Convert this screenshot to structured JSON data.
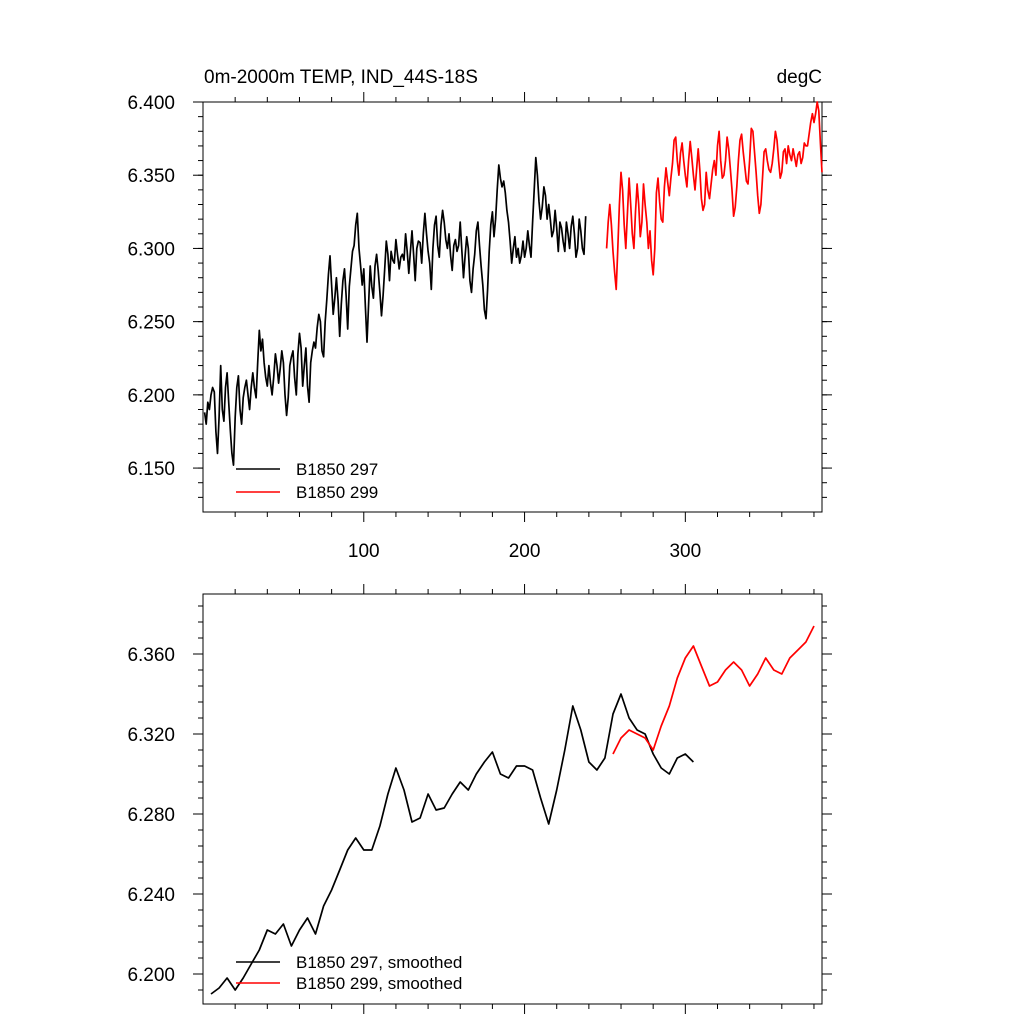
{
  "figure": {
    "background": "#ffffff"
  },
  "chart_data": [
    {
      "type": "line",
      "title_left": "0m-2000m TEMP, IND_44S-18S",
      "title_right": "degC",
      "xlim": [
        0,
        385
      ],
      "ylim": [
        6.12,
        6.4
      ],
      "yticks": [
        6.15,
        6.2,
        6.25,
        6.3,
        6.35,
        6.4
      ],
      "ytick_labels": [
        "6.150",
        "6.200",
        "6.250",
        "6.300",
        "6.350",
        "6.400"
      ],
      "xticks": [
        100,
        200,
        300
      ],
      "xtick_labels": [
        "100",
        "200",
        "300"
      ],
      "legend_position": "bottom-left",
      "series": [
        {
          "name": "B1850 297",
          "color": "#000000",
          "x_start": 1,
          "y": [
            6.188,
            6.18,
            6.195,
            6.19,
            6.2,
            6.205,
            6.202,
            6.175,
            6.16,
            6.185,
            6.22,
            6.19,
            6.182,
            6.205,
            6.215,
            6.195,
            6.176,
            6.16,
            6.152,
            6.185,
            6.205,
            6.213,
            6.19,
            6.18,
            6.198,
            6.205,
            6.21,
            6.2,
            6.19,
            6.205,
            6.215,
            6.205,
            6.198,
            6.222,
            6.244,
            6.23,
            6.238,
            6.222,
            6.212,
            6.206,
            6.22,
            6.208,
            6.2,
            6.212,
            6.228,
            6.22,
            6.208,
            6.218,
            6.23,
            6.222,
            6.2,
            6.186,
            6.198,
            6.22,
            6.226,
            6.23,
            6.212,
            6.2,
            6.228,
            6.242,
            6.232,
            6.206,
            6.22,
            6.232,
            6.206,
            6.195,
            6.222,
            6.23,
            6.236,
            6.232,
            6.246,
            6.255,
            6.25,
            6.23,
            6.226,
            6.25,
            6.265,
            6.282,
            6.295,
            6.275,
            6.255,
            6.266,
            6.28,
            6.264,
            6.24,
            6.262,
            6.278,
            6.286,
            6.268,
            6.245,
            6.274,
            6.286,
            6.298,
            6.302,
            6.316,
            6.324,
            6.3,
            6.288,
            6.275,
            6.286,
            6.26,
            6.236,
            6.262,
            6.288,
            6.274,
            6.266,
            6.288,
            6.296,
            6.285,
            6.27,
            6.254,
            6.268,
            6.286,
            6.305,
            6.296,
            6.278,
            6.298,
            6.292,
            6.29,
            6.306,
            6.296,
            6.286,
            6.294,
            6.296,
            6.292,
            6.31,
            6.298,
            6.283,
            6.298,
            6.312,
            6.296,
            6.278,
            6.3,
            6.305,
            6.304,
            6.29,
            6.31,
            6.324,
            6.31,
            6.298,
            6.29,
            6.272,
            6.3,
            6.316,
            6.322,
            6.302,
            6.294,
            6.316,
            6.326,
            6.318,
            6.306,
            6.3,
            6.31,
            6.295,
            6.285,
            6.302,
            6.306,
            6.298,
            6.302,
            6.318,
            6.298,
            6.28,
            6.295,
            6.308,
            6.3,
            6.278,
            6.27,
            6.286,
            6.296,
            6.312,
            6.318,
            6.302,
            6.288,
            6.275,
            6.258,
            6.252,
            6.272,
            6.298,
            6.316,
            6.325,
            6.308,
            6.32,
            6.34,
            6.357,
            6.348,
            6.342,
            6.346,
            6.338,
            6.326,
            6.318,
            6.305,
            6.29,
            6.3,
            6.308,
            6.294,
            6.3,
            6.29,
            6.295,
            6.305,
            6.294,
            6.3,
            6.312,
            6.302,
            6.294,
            6.318,
            6.34,
            6.362,
            6.35,
            6.332,
            6.32,
            6.328,
            6.342,
            6.336,
            6.32,
            6.33,
            6.32,
            6.308,
            6.312,
            6.326,
            6.314,
            6.298,
            6.318,
            6.314,
            6.305,
            6.298,
            6.318,
            6.31,
            6.3,
            6.315,
            6.322,
            6.31,
            6.294,
            6.3,
            6.32,
            6.312,
            6.3,
            6.296,
            6.322
          ]
        },
        {
          "name": "B1850 299",
          "color": "#ff0000",
          "x_start": 251,
          "y": [
            6.3,
            6.318,
            6.33,
            6.316,
            6.298,
            6.284,
            6.272,
            6.3,
            6.33,
            6.352,
            6.34,
            6.316,
            6.3,
            6.325,
            6.348,
            6.33,
            6.31,
            6.3,
            6.325,
            6.344,
            6.33,
            6.308,
            6.318,
            6.344,
            6.33,
            6.318,
            6.3,
            6.312,
            6.292,
            6.282,
            6.3,
            6.338,
            6.348,
            6.332,
            6.32,
            6.318,
            6.342,
            6.355,
            6.345,
            6.336,
            6.348,
            6.358,
            6.374,
            6.376,
            6.36,
            6.35,
            6.365,
            6.372,
            6.36,
            6.35,
            6.342,
            6.36,
            6.373,
            6.362,
            6.35,
            6.34,
            6.354,
            6.368,
            6.354,
            6.334,
            6.326,
            6.33,
            6.352,
            6.34,
            6.334,
            6.344,
            6.354,
            6.36,
            6.35,
            6.37,
            6.38,
            6.36,
            6.348,
            6.35,
            6.36,
            6.376,
            6.368,
            6.354,
            6.34,
            6.322,
            6.328,
            6.342,
            6.36,
            6.374,
            6.378,
            6.366,
            6.356,
            6.346,
            6.344,
            6.36,
            6.382,
            6.38,
            6.366,
            6.352,
            6.336,
            6.324,
            6.33,
            6.348,
            6.366,
            6.368,
            6.36,
            6.354,
            6.352,
            6.358,
            6.368,
            6.38,
            6.374,
            6.36,
            6.348,
            6.352,
            6.366,
            6.368,
            6.358,
            6.37,
            6.364,
            6.36,
            6.368,
            6.362,
            6.356,
            6.364,
            6.366,
            6.358,
            6.362,
            6.372,
            6.37,
            6.37,
            6.378,
            6.386,
            6.392,
            6.386,
            6.392,
            6.4,
            6.394,
            6.372,
            6.352
          ]
        }
      ]
    },
    {
      "type": "line",
      "xlim": [
        0,
        385
      ],
      "ylim": [
        6.185,
        6.39
      ],
      "yticks": [
        6.2,
        6.24,
        6.28,
        6.32,
        6.36
      ],
      "ytick_labels": [
        "6.200",
        "6.240",
        "6.280",
        "6.320",
        "6.360"
      ],
      "xticks": [
        100,
        200,
        300
      ],
      "xtick_labels": [],
      "legend_position": "bottom-left",
      "series": [
        {
          "name": "B1850 297, smoothed",
          "color": "#000000",
          "x": [
            5,
            10,
            15,
            20,
            25,
            30,
            35,
            40,
            45,
            50,
            55,
            60,
            65,
            70,
            75,
            80,
            85,
            90,
            95,
            100,
            105,
            110,
            115,
            120,
            125,
            130,
            135,
            140,
            145,
            150,
            155,
            160,
            165,
            170,
            175,
            180,
            185,
            190,
            195,
            200,
            205,
            210,
            215,
            220,
            225,
            230,
            235,
            240,
            245,
            250,
            255,
            260,
            265,
            270,
            275,
            280,
            285,
            290,
            295,
            300,
            305
          ],
          "y": [
            6.19,
            6.193,
            6.198,
            6.192,
            6.198,
            6.205,
            6.212,
            6.222,
            6.22,
            6.225,
            6.214,
            6.222,
            6.228,
            6.22,
            6.234,
            6.242,
            6.252,
            6.262,
            6.268,
            6.262,
            6.262,
            6.274,
            6.29,
            6.303,
            6.292,
            6.276,
            6.278,
            6.29,
            6.282,
            6.283,
            6.29,
            6.296,
            6.292,
            6.3,
            6.306,
            6.311,
            6.3,
            6.298,
            6.304,
            6.304,
            6.302,
            6.288,
            6.275,
            6.292,
            6.312,
            6.334,
            6.322,
            6.306,
            6.302,
            6.308,
            6.33,
            6.34,
            6.328,
            6.322,
            6.32,
            6.31,
            6.303,
            6.3,
            6.308,
            6.31,
            6.306
          ]
        },
        {
          "name": "B1850 299, smoothed",
          "color": "#ff0000",
          "x": [
            255,
            260,
            265,
            270,
            275,
            280,
            285,
            290,
            295,
            300,
            305,
            310,
            315,
            320,
            325,
            330,
            335,
            340,
            345,
            350,
            355,
            360,
            365,
            370,
            375,
            380
          ],
          "y": [
            6.31,
            6.318,
            6.322,
            6.32,
            6.318,
            6.312,
            6.324,
            6.334,
            6.348,
            6.358,
            6.364,
            6.354,
            6.344,
            6.346,
            6.352,
            6.356,
            6.352,
            6.344,
            6.35,
            6.358,
            6.352,
            6.35,
            6.358,
            6.362,
            6.366,
            6.374
          ]
        }
      ]
    }
  ]
}
